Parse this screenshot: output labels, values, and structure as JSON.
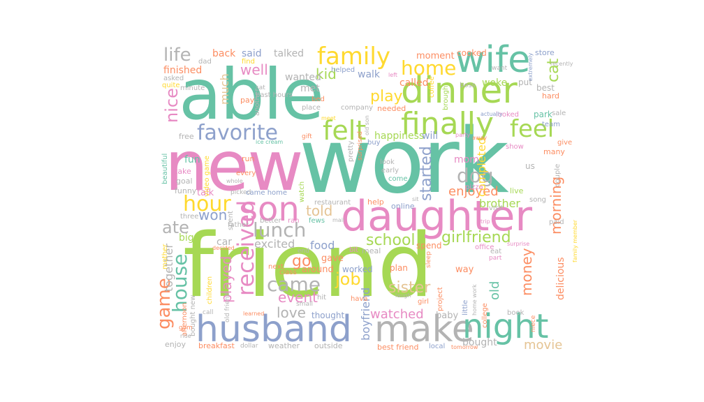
{
  "palette": {
    "green": "#66C2A5",
    "orange": "#FC8D62",
    "blue": "#8DA0CB",
    "pink": "#E78AC3",
    "lime": "#A6D854",
    "yellow": "#FFD92F",
    "tan": "#E5C494",
    "gray": "#B3B3B3"
  },
  "words": [
    {
      "text": "friend",
      "color": "lime"
    },
    {
      "text": "work",
      "color": "green"
    },
    {
      "text": "new",
      "color": "pink"
    },
    {
      "text": "able",
      "color": "green"
    },
    {
      "text": "daughter",
      "color": "pink"
    },
    {
      "text": "husband",
      "color": "blue"
    },
    {
      "text": "dinner",
      "color": "lime"
    },
    {
      "text": "make",
      "color": "gray"
    },
    {
      "text": "wife",
      "color": "green"
    },
    {
      "text": "son",
      "color": "pink"
    },
    {
      "text": "night",
      "color": "green"
    },
    {
      "text": "finally",
      "color": "lime"
    },
    {
      "text": "family",
      "color": "yellow"
    },
    {
      "text": "favorite",
      "color": "blue"
    },
    {
      "text": "felt",
      "color": "lime"
    },
    {
      "text": "feel",
      "color": "lime"
    },
    {
      "text": "home",
      "color": "yellow"
    },
    {
      "text": "received",
      "color": "pink"
    },
    {
      "text": "came",
      "color": "gray"
    },
    {
      "text": "house",
      "color": "green"
    },
    {
      "text": "game",
      "color": "orange"
    },
    {
      "text": "hour",
      "color": "yellow"
    },
    {
      "text": "life",
      "color": "gray"
    },
    {
      "text": "nice",
      "color": "pink"
    },
    {
      "text": "lunch",
      "color": "gray"
    },
    {
      "text": "ate",
      "color": "gray"
    },
    {
      "text": "dog",
      "color": "gray"
    },
    {
      "text": "girlfriend",
      "color": "lime"
    },
    {
      "text": "school",
      "color": "lime"
    },
    {
      "text": "job",
      "color": "yellow"
    },
    {
      "text": "cat",
      "color": "lime"
    },
    {
      "text": "played",
      "color": "pink"
    },
    {
      "text": "sister",
      "color": "tan"
    },
    {
      "text": "money",
      "color": "orange"
    },
    {
      "text": "morning",
      "color": "orange"
    },
    {
      "text": "watched",
      "color": "pink"
    },
    {
      "text": "movie",
      "color": "tan"
    },
    {
      "text": "started",
      "color": "blue"
    },
    {
      "text": "play",
      "color": "yellow"
    },
    {
      "text": "event",
      "color": "pink"
    },
    {
      "text": "love",
      "color": "gray"
    },
    {
      "text": "told",
      "color": "tan"
    },
    {
      "text": "go",
      "color": "orange"
    },
    {
      "text": "kid",
      "color": "lime"
    },
    {
      "text": "well",
      "color": "pink"
    },
    {
      "text": "enjoyed",
      "color": "orange"
    },
    {
      "text": "won",
      "color": "blue"
    },
    {
      "text": "much",
      "color": "tan"
    },
    {
      "text": "excited",
      "color": "gray"
    },
    {
      "text": "food",
      "color": "blue"
    },
    {
      "text": "boyfriend",
      "color": "blue"
    },
    {
      "text": "old",
      "color": "green"
    },
    {
      "text": "together",
      "color": "gray"
    },
    {
      "text": "brother",
      "color": "lime"
    },
    {
      "text": "delicious",
      "color": "orange"
    },
    {
      "text": "completed",
      "color": "yellow"
    },
    {
      "text": "bought",
      "color": "gray"
    },
    {
      "text": "back",
      "color": "orange"
    },
    {
      "text": "said",
      "color": "blue"
    },
    {
      "text": "talked",
      "color": "gray"
    },
    {
      "text": "finished",
      "color": "orange"
    },
    {
      "text": "called",
      "color": "orange"
    },
    {
      "text": "woke",
      "color": "lime"
    },
    {
      "text": "wanted",
      "color": "gray"
    },
    {
      "text": "met",
      "color": "gray"
    },
    {
      "text": "walk",
      "color": "blue"
    },
    {
      "text": "moment",
      "color": "orange"
    },
    {
      "text": "cooked",
      "color": "orange"
    },
    {
      "text": "store",
      "color": "blue"
    },
    {
      "text": "happiness",
      "color": "lime"
    },
    {
      "text": "will",
      "color": "blue"
    },
    {
      "text": "mom",
      "color": "pink"
    },
    {
      "text": "fun",
      "color": "green"
    },
    {
      "text": "take",
      "color": "pink"
    },
    {
      "text": "goal",
      "color": "gray"
    },
    {
      "text": "funny",
      "color": "gray"
    },
    {
      "text": "talk",
      "color": "pink"
    },
    {
      "text": "big",
      "color": "lime"
    },
    {
      "text": "car",
      "color": "gray"
    },
    {
      "text": "gave",
      "color": "orange"
    },
    {
      "text": "around",
      "color": "orange"
    },
    {
      "text": "worked",
      "color": "blue"
    },
    {
      "text": "plan",
      "color": "orange"
    },
    {
      "text": "way",
      "color": "orange"
    },
    {
      "text": "baby",
      "color": "gray"
    },
    {
      "text": "thought",
      "color": "blue"
    },
    {
      "text": "best friend",
      "color": "orange"
    },
    {
      "text": "breakfast",
      "color": "orange"
    },
    {
      "text": "weather",
      "color": "gray"
    },
    {
      "text": "outside",
      "color": "gray"
    },
    {
      "text": "dollar",
      "color": "gray"
    },
    {
      "text": "enjoy",
      "color": "gray"
    },
    {
      "text": "spend",
      "color": "orange"
    },
    {
      "text": "bit",
      "color": "pink"
    },
    {
      "text": "meal",
      "color": "gray"
    },
    {
      "text": "online",
      "color": "blue"
    },
    {
      "text": "help",
      "color": "orange"
    },
    {
      "text": "restaurant",
      "color": "gray"
    },
    {
      "text": "helped",
      "color": "blue"
    },
    {
      "text": "coffee",
      "color": "yellow"
    },
    {
      "text": "boss",
      "color": "gray"
    },
    {
      "text": "put",
      "color": "gray"
    },
    {
      "text": "best",
      "color": "gray"
    },
    {
      "text": "hard",
      "color": "orange"
    },
    {
      "text": "park",
      "color": "green"
    },
    {
      "text": "sale",
      "color": "gray"
    },
    {
      "text": "looked",
      "color": "pink"
    },
    {
      "text": "brought",
      "color": "lime"
    },
    {
      "text": "needed",
      "color": "orange"
    },
    {
      "text": "company",
      "color": "gray"
    },
    {
      "text": "place",
      "color": "gray"
    },
    {
      "text": "bed",
      "color": "orange"
    },
    {
      "text": "pay",
      "color": "orange"
    },
    {
      "text": "minute",
      "color": "gray"
    },
    {
      "text": "asked",
      "color": "gray"
    },
    {
      "text": "quite",
      "color": "yellow"
    },
    {
      "text": "dad",
      "color": "gray"
    },
    {
      "text": "find",
      "color": "yellow"
    },
    {
      "text": "sat",
      "color": "gray"
    },
    {
      "text": "past hours",
      "color": "gray"
    },
    {
      "text": "another",
      "color": "gray"
    },
    {
      "text": "spent",
      "color": "gray"
    },
    {
      "text": "free",
      "color": "gray"
    },
    {
      "text": "run",
      "color": "orange"
    },
    {
      "text": "every",
      "color": "orange"
    },
    {
      "text": "whole",
      "color": "gray"
    },
    {
      "text": "picked",
      "color": "gray"
    },
    {
      "text": "came home",
      "color": "blue"
    },
    {
      "text": "watch",
      "color": "lime"
    },
    {
      "text": "look",
      "color": "gray"
    },
    {
      "text": "early",
      "color": "gray"
    },
    {
      "text": "come",
      "color": "green"
    },
    {
      "text": "buy",
      "color": "blue"
    },
    {
      "text": "pretty",
      "color": "gray"
    },
    {
      "text": "surprised",
      "color": "orange"
    },
    {
      "text": "pizza",
      "color": "pink"
    },
    {
      "text": "visit",
      "color": "gray"
    },
    {
      "text": "live",
      "color": "lime"
    },
    {
      "text": "song",
      "color": "gray"
    },
    {
      "text": "paid",
      "color": "gray"
    },
    {
      "text": "trip",
      "color": "pink"
    },
    {
      "text": "office",
      "color": "pink"
    },
    {
      "text": "surprise",
      "color": "pink"
    },
    {
      "text": "part",
      "color": "pink"
    },
    {
      "text": "eat",
      "color": "gray"
    },
    {
      "text": "us",
      "color": "gray"
    },
    {
      "text": "many",
      "color": "orange"
    },
    {
      "text": "give",
      "color": "orange"
    },
    {
      "text": "show",
      "color": "pink"
    },
    {
      "text": "team",
      "color": "blue"
    },
    {
      "text": "couple",
      "color": "gray"
    },
    {
      "text": "family member",
      "color": "yellow"
    },
    {
      "text": "recently",
      "color": "gray"
    },
    {
      "text": "extremely",
      "color": "blue"
    },
    {
      "text": "want",
      "color": "gray"
    },
    {
      "text": "actually",
      "color": "blue"
    },
    {
      "text": "party",
      "color": "pink"
    },
    {
      "text": "away",
      "color": "orange"
    },
    {
      "text": "gift",
      "color": "orange"
    },
    {
      "text": "meet",
      "color": "yellow"
    },
    {
      "text": "ice cream",
      "color": "green"
    },
    {
      "text": "old son",
      "color": "gray"
    },
    {
      "text": "left",
      "color": "pink"
    },
    {
      "text": "video game",
      "color": "yellow"
    },
    {
      "text": "beautiful",
      "color": "green"
    },
    {
      "text": "mother",
      "color": "yellow"
    },
    {
      "text": "three",
      "color": "gray"
    },
    {
      "text": "father",
      "color": "gray"
    },
    {
      "text": "better",
      "color": "gray"
    },
    {
      "text": "ran",
      "color": "pink"
    },
    {
      "text": "fews",
      "color": "green"
    },
    {
      "text": "mail",
      "color": "gray"
    },
    {
      "text": "sit",
      "color": "gray"
    },
    {
      "text": "decided",
      "color": "orange"
    },
    {
      "text": "next",
      "color": "orange"
    },
    {
      "text": "class",
      "color": "orange"
    },
    {
      "text": "end",
      "color": "gray"
    },
    {
      "text": "hava",
      "color": "orange"
    },
    {
      "text": "hit",
      "color": "gray"
    },
    {
      "text": "small",
      "color": "gray"
    },
    {
      "text": "children",
      "color": "yellow"
    },
    {
      "text": "old friend",
      "color": "gray"
    },
    {
      "text": "learned",
      "color": "orange"
    },
    {
      "text": "afternoon",
      "color": "orange"
    },
    {
      "text": "bought new",
      "color": "gray"
    },
    {
      "text": "gym",
      "color": "orange"
    },
    {
      "text": "ride",
      "color": "gray"
    },
    {
      "text": "call",
      "color": "gray"
    },
    {
      "text": "sleep",
      "color": "orange"
    },
    {
      "text": "laugh",
      "color": "gray"
    },
    {
      "text": "project",
      "color": "orange"
    },
    {
      "text": "little",
      "color": "blue"
    },
    {
      "text": "home work",
      "color": "gray"
    },
    {
      "text": "girl",
      "color": "orange"
    },
    {
      "text": "college",
      "color": "orange"
    },
    {
      "text": "book",
      "color": "gray"
    },
    {
      "text": "local",
      "color": "blue"
    },
    {
      "text": "tomorrow",
      "color": "orange"
    },
    {
      "text": "niece",
      "color": "orange"
    }
  ]
}
